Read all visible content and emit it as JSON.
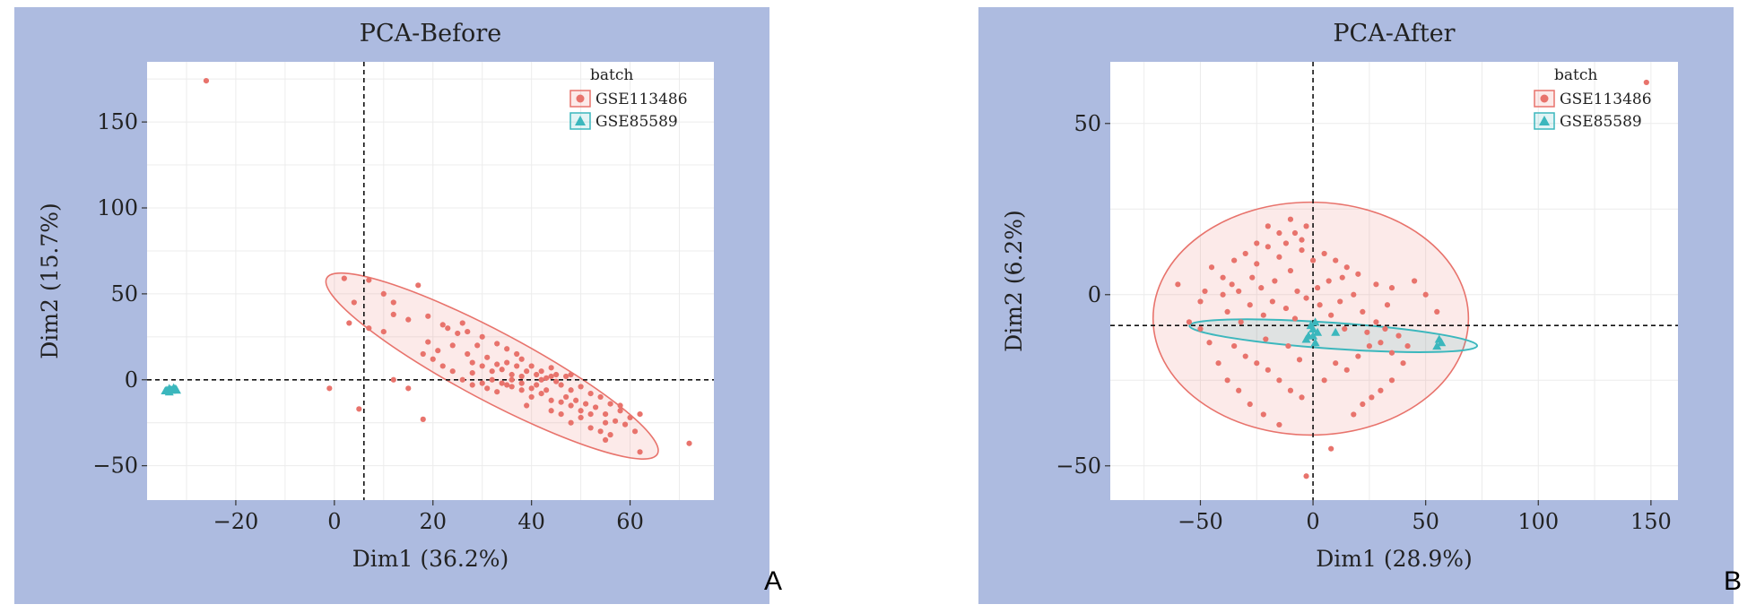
{
  "panel_labels": [
    "A",
    "B"
  ],
  "chart_data": [
    {
      "type": "scatter",
      "title": "PCA-Before",
      "xlabel": "Dim1 (36.2%)",
      "ylabel": "Dim2 (15.7%)",
      "xlim": [
        -38,
        77
      ],
      "ylim": [
        -70,
        185
      ],
      "xticks": [
        -20,
        0,
        20,
        40,
        60
      ],
      "yticks": [
        -50,
        0,
        50,
        100,
        150
      ],
      "grid": true,
      "reference_lines": {
        "x": 6,
        "y": 0
      },
      "legend": {
        "title": "batch",
        "position": "top-right"
      },
      "colors": {
        "GSE113486": "#e8736c",
        "GSE85589": "#3bb7bd"
      },
      "series": [
        {
          "name": "GSE113486",
          "marker": "circle",
          "ellipse": {
            "cx": 32,
            "cy": 8,
            "rx": 38,
            "ry": 20,
            "angle_deg": 28
          },
          "points": [
            [
              -26,
              174
            ],
            [
              2,
              59
            ],
            [
              7,
              58
            ],
            [
              10,
              50
            ],
            [
              12,
              45
            ],
            [
              17,
              55
            ],
            [
              4,
              45
            ],
            [
              3,
              33
            ],
            [
              7,
              30
            ],
            [
              10,
              28
            ],
            [
              12,
              38
            ],
            [
              15,
              35
            ],
            [
              19,
              37
            ],
            [
              22,
              32
            ],
            [
              26,
              33
            ],
            [
              25,
              27
            ],
            [
              19,
              22
            ],
            [
              21,
              17
            ],
            [
              24,
              20
            ],
            [
              27,
              15
            ],
            [
              30,
              25
            ],
            [
              33,
              21
            ],
            [
              35,
              18
            ],
            [
              37,
              15
            ],
            [
              38,
              12
            ],
            [
              40,
              8
            ],
            [
              42,
              5
            ],
            [
              45,
              3
            ],
            [
              47,
              2
            ],
            [
              28,
              10
            ],
            [
              30,
              8
            ],
            [
              32,
              5
            ],
            [
              34,
              6
            ],
            [
              36,
              3
            ],
            [
              38,
              -2
            ],
            [
              40,
              -5
            ],
            [
              42,
              0
            ],
            [
              44,
              2
            ],
            [
              46,
              -3
            ],
            [
              48,
              -6
            ],
            [
              50,
              -4
            ],
            [
              52,
              -8
            ],
            [
              54,
              -10
            ],
            [
              56,
              -14
            ],
            [
              58,
              -18
            ],
            [
              60,
              -22
            ],
            [
              55,
              -25
            ],
            [
              52,
              -20
            ],
            [
              50,
              -18
            ],
            [
              48,
              -15
            ],
            [
              46,
              -13
            ],
            [
              44,
              -12
            ],
            [
              42,
              -8
            ],
            [
              40,
              -10
            ],
            [
              38,
              -6
            ],
            [
              36,
              -4
            ],
            [
              34,
              -2
            ],
            [
              32,
              0
            ],
            [
              30,
              -2
            ],
            [
              28,
              -3
            ],
            [
              26,
              0
            ],
            [
              24,
              5
            ],
            [
              22,
              8
            ],
            [
              20,
              12
            ],
            [
              18,
              15
            ],
            [
              35,
              10
            ],
            [
              37,
              8
            ],
            [
              39,
              5
            ],
            [
              41,
              3
            ],
            [
              43,
              1
            ],
            [
              45,
              -1
            ],
            [
              47,
              -10
            ],
            [
              49,
              -12
            ],
            [
              51,
              -14
            ],
            [
              53,
              -16
            ],
            [
              55,
              -20
            ],
            [
              57,
              -24
            ],
            [
              59,
              -26
            ],
            [
              61,
              -30
            ],
            [
              56,
              -32
            ],
            [
              54,
              -30
            ],
            [
              52,
              -28
            ],
            [
              50,
              -22
            ],
            [
              48,
              -25
            ],
            [
              46,
              -20
            ],
            [
              44,
              -18
            ],
            [
              55,
              -35
            ],
            [
              62,
              -42
            ],
            [
              72,
              -37
            ],
            [
              28,
              4
            ],
            [
              31,
              13
            ],
            [
              33,
              9
            ],
            [
              36,
              0
            ],
            [
              38,
              2
            ],
            [
              41,
              -3
            ],
            [
              43,
              -6
            ],
            [
              -1,
              -5
            ],
            [
              5,
              -17
            ],
            [
              12,
              0
            ],
            [
              15,
              -5
            ],
            [
              18,
              -23
            ],
            [
              23,
              30
            ],
            [
              27,
              28
            ],
            [
              29,
              20
            ],
            [
              31,
              -5
            ],
            [
              33,
              -7
            ],
            [
              35,
              -3
            ],
            [
              39,
              -15
            ],
            [
              44,
              7
            ],
            [
              48,
              3
            ],
            [
              58,
              -15
            ],
            [
              62,
              -20
            ]
          ]
        },
        {
          "name": "GSE85589",
          "marker": "triangle",
          "points": [
            [
              -34,
              -6
            ],
            [
              -33.5,
              -5
            ],
            [
              -33,
              -6
            ],
            [
              -32.5,
              -5.5
            ],
            [
              -32,
              -6
            ],
            [
              -33.5,
              -7
            ],
            [
              -32.6,
              -4.6
            ],
            [
              -33.2,
              -5.8
            ],
            [
              -34.3,
              -6.4
            ],
            [
              -32.2,
              -5.2
            ]
          ]
        }
      ]
    },
    {
      "type": "scatter",
      "title": "PCA-After",
      "xlabel": "Dim1 (28.9%)",
      "ylabel": "Dim2 (6.2%)",
      "xlim": [
        -90,
        162
      ],
      "ylim": [
        -60,
        68
      ],
      "xticks": [
        -50,
        0,
        50,
        100,
        150
      ],
      "yticks": [
        -50,
        0,
        50
      ],
      "grid": true,
      "reference_lines": {
        "x": 0,
        "y": -9
      },
      "legend": {
        "title": "batch",
        "position": "top-right"
      },
      "colors": {
        "GSE113486": "#e8736c",
        "GSE85589": "#3bb7bd"
      },
      "series": [
        {
          "name": "GSE113486",
          "marker": "circle",
          "ellipse": {
            "cx": -1,
            "cy": -7,
            "rx": 70,
            "ry": 34,
            "angle_deg": 0
          },
          "points": [
            [
              148,
              62
            ],
            [
              -60,
              3
            ],
            [
              -50,
              -2
            ],
            [
              -45,
              8
            ],
            [
              -40,
              5
            ],
            [
              -35,
              10
            ],
            [
              -30,
              12
            ],
            [
              -25,
              9
            ],
            [
              -20,
              14
            ],
            [
              -15,
              11
            ],
            [
              -10,
              7
            ],
            [
              -5,
              13
            ],
            [
              5,
              12
            ],
            [
              10,
              10
            ],
            [
              15,
              8
            ],
            [
              -38,
              -5
            ],
            [
              -32,
              -8
            ],
            [
              -28,
              -3
            ],
            [
              -22,
              -6
            ],
            [
              -18,
              -2
            ],
            [
              -12,
              -4
            ],
            [
              -8,
              -7
            ],
            [
              -3,
              -1
            ],
            [
              3,
              -3
            ],
            [
              8,
              -6
            ],
            [
              12,
              -2
            ],
            [
              18,
              0
            ],
            [
              22,
              -5
            ],
            [
              28,
              -8
            ],
            [
              32,
              -10
            ],
            [
              38,
              -12
            ],
            [
              42,
              -15
            ],
            [
              -35,
              -15
            ],
            [
              -30,
              -18
            ],
            [
              -25,
              -20
            ],
            [
              -20,
              -22
            ],
            [
              -15,
              -25
            ],
            [
              -10,
              -28
            ],
            [
              -5,
              -30
            ],
            [
              5,
              -25
            ],
            [
              10,
              -20
            ],
            [
              15,
              -22
            ],
            [
              20,
              -18
            ],
            [
              25,
              -15
            ],
            [
              30,
              -14
            ],
            [
              35,
              -17
            ],
            [
              40,
              -20
            ],
            [
              -42,
              -20
            ],
            [
              -38,
              -25
            ],
            [
              -33,
              -28
            ],
            [
              -28,
              -32
            ],
            [
              -22,
              -35
            ],
            [
              -15,
              -38
            ],
            [
              18,
              -35
            ],
            [
              22,
              -32
            ],
            [
              26,
              -30
            ],
            [
              30,
              -28
            ],
            [
              35,
              -25
            ],
            [
              -25,
              15
            ],
            [
              -20,
              20
            ],
            [
              -15,
              18
            ],
            [
              -10,
              22
            ],
            [
              -5,
              16
            ],
            [
              0,
              10
            ],
            [
              45,
              4
            ],
            [
              50,
              0
            ],
            [
              55,
              -5
            ],
            [
              -50,
              -10
            ],
            [
              -46,
              -14
            ],
            [
              -55,
              -8
            ],
            [
              -40,
              0
            ],
            [
              -36,
              3
            ],
            [
              -27,
              5
            ],
            [
              -23,
              2
            ],
            [
              -17,
              4
            ],
            [
              -7,
              1
            ],
            [
              2,
              2
            ],
            [
              7,
              4
            ],
            [
              13,
              5
            ],
            [
              20,
              6
            ],
            [
              28,
              3
            ],
            [
              35,
              2
            ],
            [
              -12,
              15
            ],
            [
              -8,
              18
            ],
            [
              -3,
              20
            ],
            [
              8,
              -45
            ],
            [
              -3,
              -53
            ],
            [
              -48,
              1
            ],
            [
              -33,
              1
            ],
            [
              -21,
              -13
            ],
            [
              -11,
              -15
            ],
            [
              -6,
              -19
            ],
            [
              14,
              -10
            ],
            [
              24,
              -11
            ],
            [
              33,
              -3
            ]
          ]
        },
        {
          "name": "GSE85589",
          "marker": "triangle",
          "points": [
            [
              -2,
              -12
            ],
            [
              0,
              -10
            ],
            [
              1,
              -8
            ],
            [
              -1,
              -9
            ],
            [
              2,
              -11
            ],
            [
              -3,
              -13
            ],
            [
              0,
              -12
            ],
            [
              1,
              -14
            ],
            [
              10,
              -11
            ],
            [
              56,
              -13
            ],
            [
              57,
              -14
            ],
            [
              55,
              -15
            ]
          ]
        }
      ]
    }
  ]
}
